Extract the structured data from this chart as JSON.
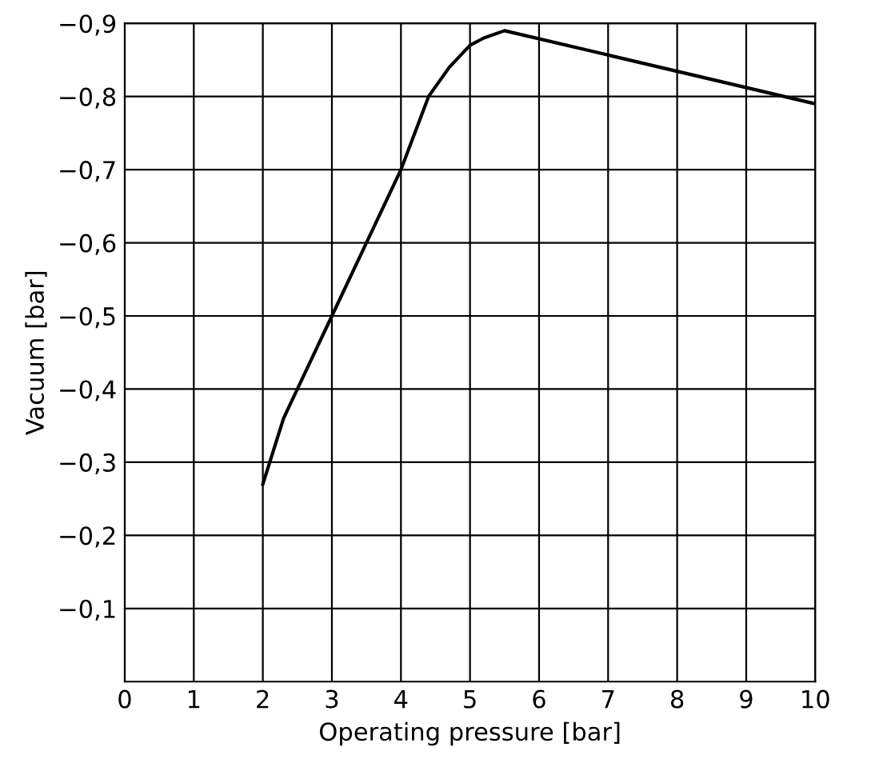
{
  "chart_data": {
    "type": "line",
    "xlabel": "Operating pressure [bar]",
    "ylabel": "Vacuum [bar]",
    "series": [
      {
        "color": "#000000",
        "x": [
          2,
          2.3,
          2.6,
          3,
          3.5,
          4,
          4.4,
          4.7,
          5,
          5.2,
          5.5,
          10
        ],
        "values": [
          -0.27,
          -0.36,
          -0.42,
          -0.5,
          -0.6,
          -0.7,
          -0.8,
          -0.84,
          -0.87,
          -0.88,
          -0.89,
          -0.79
        ]
      }
    ],
    "xlim": [
      0,
      10
    ],
    "xticks": [
      0,
      1,
      2,
      3,
      4,
      5,
      6,
      7,
      8,
      9,
      10
    ],
    "ylim": [
      0,
      -0.9
    ],
    "yticks": [
      {
        "value": -0.1,
        "label": "−0,1"
      },
      {
        "value": -0.2,
        "label": "−0,2"
      },
      {
        "value": -0.3,
        "label": "−0,3"
      },
      {
        "value": -0.4,
        "label": "−0,4"
      },
      {
        "value": -0.5,
        "label": "−0,5"
      },
      {
        "value": -0.6,
        "label": "−0,6"
      },
      {
        "value": -0.7,
        "label": "−0,7"
      },
      {
        "value": -0.8,
        "label": "−0,8"
      },
      {
        "value": -0.9,
        "label": "−0,9"
      }
    ],
    "grid": true,
    "legend": false
  }
}
